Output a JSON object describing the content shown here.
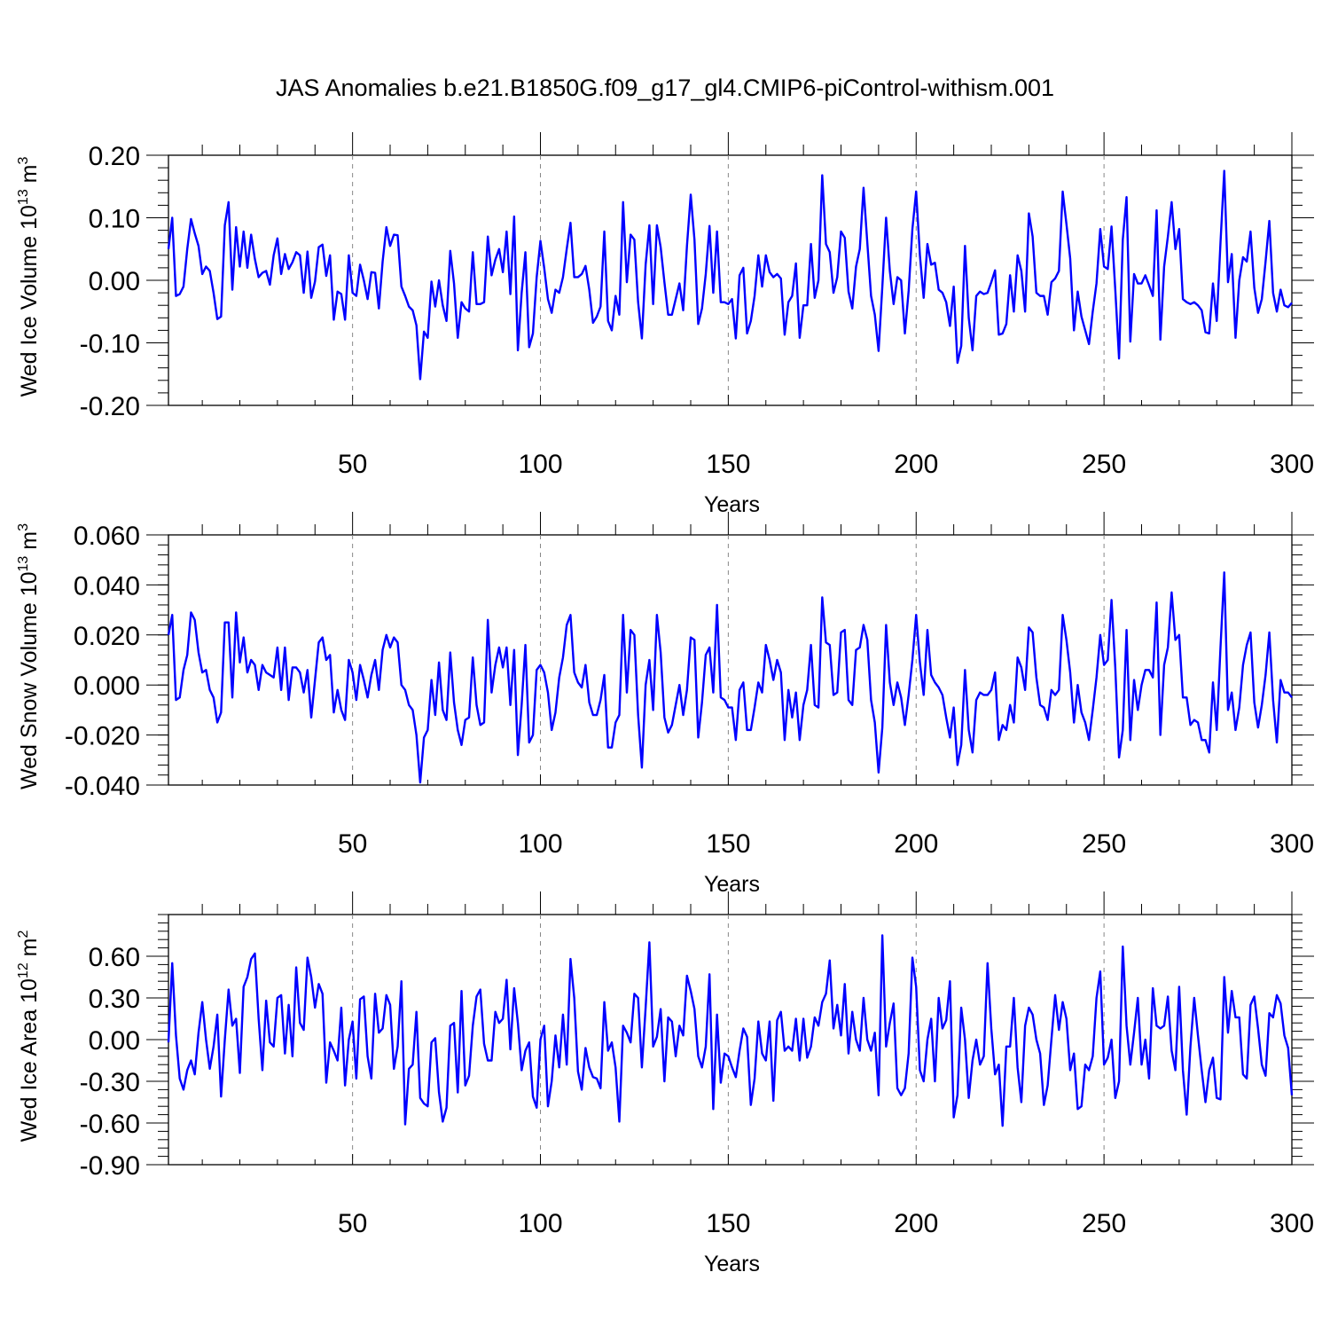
{
  "title": "JAS Anomalies b.e21.B1850G.f09_g17_gl4.CMIP6-piControl-withism.001",
  "line_color": "#0000ff",
  "chart_data": [
    {
      "type": "line",
      "ylabel": "Wed Ice Volume 10",
      "ylabel_exp": "13",
      "ylabel_unit": " m",
      "ylabel_unit_exp": "3",
      "xlabel": "Years",
      "xlim": [
        1,
        300
      ],
      "ylim": [
        -0.2,
        0.2
      ],
      "x_ticks": [
        "50",
        "100",
        "150",
        "200",
        "250",
        "300"
      ],
      "y_ticks": [
        "-0.20",
        "-0.10",
        "0.00",
        "0.10",
        "0.20"
      ],
      "grid": "dashed vertical lines at x ticks",
      "values": [
        0.05,
        0.1,
        -0.025,
        -0.022,
        -0.01,
        0.05,
        0.098,
        0.075,
        0.055,
        0.01,
        0.022,
        0.015,
        -0.02,
        -0.062,
        -0.058,
        0.088,
        0.125,
        -0.015,
        0.085,
        0.022,
        0.078,
        0.02,
        0.073,
        0.034,
        0.005,
        0.012,
        0.015,
        -0.007,
        0.04,
        0.067,
        0.01,
        0.042,
        0.018,
        0.029,
        0.045,
        0.04,
        -0.02,
        0.046,
        -0.028,
        -0.002,
        0.053,
        0.057,
        0.007,
        0.04,
        -0.063,
        -0.018,
        -0.022,
        -0.063,
        0.04,
        -0.02,
        -0.025,
        0.025,
        0.0,
        -0.03,
        0.013,
        0.012,
        -0.045,
        0.03,
        0.085,
        0.055,
        0.073,
        0.072,
        -0.01,
        -0.025,
        -0.042,
        -0.048,
        -0.072,
        -0.158,
        -0.082,
        -0.092,
        -0.002,
        -0.042,
        0.0,
        -0.04,
        -0.065,
        0.047,
        -0.005,
        -0.092,
        -0.035,
        -0.045,
        -0.05,
        0.045,
        -0.038,
        -0.038,
        -0.035,
        0.07,
        0.008,
        0.033,
        0.05,
        0.013,
        0.078,
        -0.022,
        0.102,
        -0.112,
        -0.02,
        0.045,
        -0.107,
        -0.085,
        0.005,
        0.063,
        0.02,
        -0.03,
        -0.052,
        -0.015,
        -0.02,
        0.005,
        0.05,
        0.092,
        0.005,
        0.005,
        0.01,
        0.023,
        -0.015,
        -0.068,
        -0.058,
        -0.042,
        0.078,
        -0.065,
        -0.08,
        -0.025,
        -0.055,
        0.125,
        -0.003,
        0.073,
        0.065,
        -0.035,
        -0.093,
        0.025,
        0.088,
        -0.038,
        0.088,
        0.053,
        -0.003,
        -0.055,
        -0.055,
        -0.03,
        -0.005,
        -0.048,
        0.055,
        0.137,
        0.065,
        -0.07,
        -0.045,
        0.01,
        0.087,
        -0.02,
        0.078,
        -0.035,
        -0.035,
        -0.038,
        -0.03,
        -0.093,
        0.008,
        0.02,
        -0.085,
        -0.065,
        -0.025,
        0.04,
        -0.01,
        0.04,
        0.013,
        0.005,
        0.01,
        0.003,
        -0.087,
        -0.035,
        -0.025,
        0.027,
        -0.092,
        -0.04,
        -0.04,
        0.058,
        -0.028,
        0.0,
        0.168,
        0.058,
        0.045,
        -0.02,
        0.005,
        0.078,
        0.068,
        -0.018,
        -0.045,
        0.022,
        0.05,
        0.148,
        0.06,
        -0.025,
        -0.055,
        -0.113,
        -0.01,
        0.1,
        0.015,
        -0.038,
        0.005,
        0.0,
        -0.085,
        -0.017,
        0.082,
        0.142,
        0.04,
        -0.028,
        0.058,
        0.025,
        0.028,
        -0.015,
        -0.02,
        -0.035,
        -0.073,
        -0.01,
        -0.132,
        -0.105,
        0.055,
        -0.06,
        -0.112,
        -0.025,
        -0.018,
        -0.022,
        -0.02,
        -0.003,
        0.016,
        -0.087,
        -0.085,
        -0.07,
        0.008,
        -0.05,
        0.04,
        0.015,
        -0.05,
        0.107,
        0.07,
        -0.02,
        -0.025,
        -0.025,
        -0.055,
        -0.003,
        0.003,
        0.015,
        0.142,
        0.09,
        0.035,
        -0.08,
        -0.018,
        -0.058,
        -0.08,
        -0.102,
        -0.05,
        -0.005,
        0.082,
        0.022,
        0.018,
        0.086,
        -0.015,
        -0.125,
        0.065,
        0.133,
        -0.098,
        0.01,
        -0.005,
        -0.005,
        0.008,
        -0.008,
        -0.025,
        0.112,
        -0.095,
        0.022,
        0.07,
        0.125,
        0.05,
        0.082,
        -0.03,
        -0.035,
        -0.038,
        -0.035,
        -0.04,
        -0.048,
        -0.083,
        -0.085,
        -0.005,
        -0.065,
        0.06,
        0.175,
        -0.003,
        0.042,
        -0.092,
        0.0,
        0.037,
        0.03,
        0.078,
        -0.012,
        -0.052,
        -0.03,
        0.03,
        0.095,
        -0.02,
        -0.05,
        -0.015,
        -0.04,
        -0.043,
        -0.036
      ]
    },
    {
      "type": "line",
      "ylabel": "Wed Snow Volume 10",
      "ylabel_exp": "13",
      "ylabel_unit": " m",
      "ylabel_unit_exp": "3",
      "xlabel": "Years",
      "xlim": [
        1,
        300
      ],
      "ylim": [
        -0.04,
        0.06
      ],
      "x_ticks": [
        "50",
        "100",
        "150",
        "200",
        "250",
        "300"
      ],
      "y_ticks": [
        "-0.040",
        "-0.020",
        "0.000",
        "0.020",
        "0.040",
        "0.060"
      ],
      "grid": "dashed vertical lines at x ticks",
      "values": [
        0.02,
        0.028,
        -0.006,
        -0.005,
        0.006,
        0.012,
        0.029,
        0.026,
        0.013,
        0.005,
        0.006,
        -0.002,
        -0.005,
        -0.015,
        -0.011,
        0.025,
        0.025,
        -0.005,
        0.029,
        0.009,
        0.019,
        0.005,
        0.01,
        0.008,
        -0.002,
        0.008,
        0.005,
        0.004,
        0.003,
        0.015,
        -0.002,
        0.015,
        -0.006,
        0.007,
        0.007,
        0.005,
        -0.003,
        0.006,
        -0.013,
        0.002,
        0.017,
        0.019,
        0.01,
        0.012,
        -0.011,
        -0.002,
        -0.01,
        -0.014,
        0.01,
        0.005,
        -0.006,
        0.008,
        0.002,
        -0.005,
        0.004,
        0.01,
        -0.002,
        0.014,
        0.02,
        0.015,
        0.019,
        0.017,
        0.0,
        -0.002,
        -0.008,
        -0.01,
        -0.02,
        -0.039,
        -0.021,
        -0.018,
        0.002,
        -0.012,
        0.009,
        -0.01,
        -0.014,
        0.013,
        -0.007,
        -0.018,
        -0.024,
        -0.014,
        -0.013,
        0.011,
        -0.008,
        -0.016,
        -0.015,
        0.026,
        -0.003,
        0.008,
        0.015,
        0.007,
        0.015,
        -0.008,
        0.014,
        -0.028,
        -0.008,
        0.016,
        -0.023,
        -0.02,
        0.006,
        0.008,
        0.005,
        -0.003,
        -0.018,
        -0.011,
        0.003,
        0.011,
        0.024,
        0.028,
        0.005,
        0.001,
        -0.001,
        0.008,
        -0.007,
        -0.012,
        -0.012,
        -0.006,
        0.004,
        -0.025,
        -0.025,
        -0.015,
        -0.012,
        0.028,
        -0.003,
        0.022,
        0.02,
        -0.012,
        -0.033,
        0.0,
        0.01,
        -0.01,
        0.028,
        0.013,
        -0.013,
        -0.019,
        -0.016,
        -0.008,
        0.0,
        -0.012,
        -0.002,
        0.019,
        0.018,
        -0.021,
        -0.007,
        0.012,
        0.015,
        -0.003,
        0.032,
        -0.005,
        -0.006,
        -0.009,
        -0.009,
        -0.022,
        -0.002,
        0.001,
        -0.018,
        -0.018,
        -0.009,
        0.001,
        -0.003,
        0.016,
        0.01,
        0.002,
        0.01,
        0.005,
        -0.022,
        -0.002,
        -0.013,
        -0.003,
        -0.022,
        -0.008,
        -0.002,
        0.016,
        -0.008,
        -0.009,
        0.035,
        0.017,
        0.016,
        -0.004,
        -0.003,
        0.021,
        0.022,
        -0.006,
        -0.008,
        0.014,
        0.015,
        0.024,
        0.018,
        -0.006,
        -0.015,
        -0.035,
        -0.017,
        0.024,
        0.001,
        -0.008,
        0.001,
        -0.005,
        -0.016,
        -0.004,
        0.01,
        0.028,
        0.009,
        -0.004,
        0.022,
        0.004,
        0.001,
        -0.001,
        -0.004,
        -0.013,
        -0.021,
        -0.009,
        -0.032,
        -0.024,
        0.006,
        -0.018,
        -0.027,
        -0.006,
        -0.003,
        -0.004,
        -0.004,
        -0.002,
        0.005,
        -0.022,
        -0.016,
        -0.018,
        -0.008,
        -0.015,
        0.011,
        0.007,
        -0.002,
        0.023,
        0.021,
        0.003,
        -0.008,
        -0.009,
        -0.014,
        -0.002,
        -0.004,
        -0.002,
        0.028,
        0.018,
        0.005,
        -0.015,
        0.0,
        -0.011,
        -0.015,
        -0.022,
        -0.01,
        0.003,
        0.02,
        0.008,
        0.01,
        0.034,
        0.007,
        -0.029,
        -0.018,
        0.022,
        -0.022,
        0.002,
        -0.01,
        0.0,
        0.006,
        0.006,
        0.003,
        0.033,
        -0.02,
        0.008,
        0.015,
        0.037,
        0.018,
        0.02,
        -0.005,
        -0.005,
        -0.016,
        -0.014,
        -0.015,
        -0.022,
        -0.022,
        -0.027,
        0.001,
        -0.018,
        0.015,
        0.045,
        -0.01,
        -0.003,
        -0.018,
        -0.009,
        0.008,
        0.016,
        0.021,
        -0.007,
        -0.017,
        -0.008,
        0.004,
        0.021,
        -0.006,
        -0.023,
        0.002,
        -0.003,
        -0.003,
        -0.005
      ]
    },
    {
      "type": "line",
      "ylabel": "Wed Ice Area 10",
      "ylabel_exp": "12",
      "ylabel_unit": " m",
      "ylabel_unit_exp": "2",
      "xlabel": "Years",
      "xlim": [
        1,
        300
      ],
      "ylim": [
        -0.9,
        0.9
      ],
      "x_ticks": [
        "50",
        "100",
        "150",
        "200",
        "250",
        "300"
      ],
      "y_ticks": [
        "-0.90",
        "-0.60",
        "-0.30",
        "0.00",
        "0.30",
        "0.60"
      ],
      "grid": "dashed vertical lines at x ticks",
      "values": [
        -0.02,
        0.55,
        0.03,
        -0.28,
        -0.36,
        -0.22,
        -0.15,
        -0.25,
        0.05,
        0.27,
        0.0,
        -0.21,
        -0.05,
        0.18,
        -0.41,
        0.0,
        0.36,
        0.1,
        0.15,
        -0.24,
        0.38,
        0.45,
        0.58,
        0.62,
        0.15,
        -0.22,
        0.28,
        -0.02,
        -0.05,
        0.3,
        0.32,
        -0.1,
        0.25,
        -0.12,
        0.52,
        0.12,
        0.07,
        0.59,
        0.45,
        0.23,
        0.4,
        0.33,
        -0.31,
        -0.02,
        -0.08,
        -0.15,
        0.23,
        -0.33,
        0.0,
        0.13,
        -0.28,
        0.29,
        0.31,
        -0.12,
        -0.28,
        0.33,
        0.05,
        0.08,
        0.32,
        0.25,
        -0.21,
        -0.05,
        0.42,
        -0.61,
        -0.21,
        -0.18,
        0.2,
        -0.42,
        -0.46,
        -0.48,
        -0.02,
        0.01,
        -0.38,
        -0.59,
        -0.49,
        0.1,
        0.12,
        -0.38,
        0.35,
        -0.33,
        -0.26,
        0.1,
        0.31,
        0.36,
        -0.03,
        -0.15,
        -0.15,
        0.2,
        0.12,
        0.15,
        0.43,
        -0.07,
        0.37,
        0.12,
        -0.22,
        -0.08,
        -0.02,
        -0.41,
        -0.49,
        0.0,
        0.1,
        -0.48,
        -0.3,
        0.03,
        -0.2,
        0.18,
        -0.18,
        0.58,
        0.3,
        -0.23,
        -0.36,
        -0.06,
        -0.2,
        -0.27,
        -0.28,
        -0.35,
        0.27,
        -0.08,
        -0.02,
        -0.2,
        -0.59,
        0.1,
        0.05,
        -0.02,
        0.33,
        0.3,
        -0.2,
        0.23,
        0.7,
        -0.05,
        0.02,
        0.22,
        -0.3,
        0.16,
        0.13,
        -0.12,
        0.1,
        0.03,
        0.46,
        0.35,
        0.22,
        -0.12,
        -0.2,
        -0.05,
        0.47,
        -0.5,
        0.18,
        -0.31,
        -0.1,
        -0.12,
        -0.2,
        -0.27,
        -0.08,
        0.08,
        0.02,
        -0.47,
        -0.28,
        0.13,
        -0.1,
        -0.15,
        0.13,
        -0.44,
        0.14,
        0.2,
        -0.08,
        -0.05,
        -0.08,
        0.15,
        -0.15,
        0.15,
        -0.13,
        -0.05,
        0.16,
        0.1,
        0.27,
        0.33,
        0.57,
        0.08,
        0.25,
        0.03,
        0.4,
        -0.1,
        0.2,
        0.0,
        -0.08,
        0.3,
        0.0,
        -0.08,
        0.05,
        -0.4,
        0.75,
        -0.05,
        0.12,
        0.26,
        -0.35,
        -0.4,
        -0.35,
        -0.1,
        0.59,
        0.38,
        -0.22,
        -0.3,
        0.0,
        0.15,
        -0.3,
        0.3,
        0.08,
        0.14,
        0.42,
        -0.56,
        -0.4,
        0.23,
        0.0,
        -0.42,
        -0.15,
        0.0,
        -0.18,
        -0.12,
        0.55,
        0.08,
        -0.25,
        -0.18,
        -0.62,
        -0.05,
        -0.05,
        0.3,
        -0.2,
        -0.45,
        0.1,
        0.23,
        0.18,
        0.0,
        -0.1,
        -0.47,
        -0.33,
        0.0,
        0.32,
        0.07,
        0.27,
        0.15,
        -0.22,
        -0.1,
        -0.5,
        -0.48,
        -0.18,
        -0.22,
        -0.12,
        0.3,
        0.49,
        -0.18,
        -0.13,
        0.0,
        -0.42,
        -0.3,
        0.67,
        0.1,
        -0.18,
        0.05,
        0.3,
        -0.18,
        0.0,
        -0.28,
        0.37,
        0.1,
        0.08,
        0.1,
        0.31,
        -0.08,
        -0.22,
        0.38,
        -0.22,
        -0.54,
        -0.05,
        0.3,
        0.03,
        -0.22,
        -0.45,
        -0.22,
        -0.13,
        -0.42,
        -0.43,
        0.45,
        0.05,
        0.35,
        0.16,
        0.16,
        -0.25,
        -0.28,
        0.25,
        0.31,
        0.08,
        -0.18,
        -0.26,
        0.19,
        0.16,
        0.32,
        0.26,
        0.03,
        -0.06,
        -0.4
      ]
    }
  ]
}
